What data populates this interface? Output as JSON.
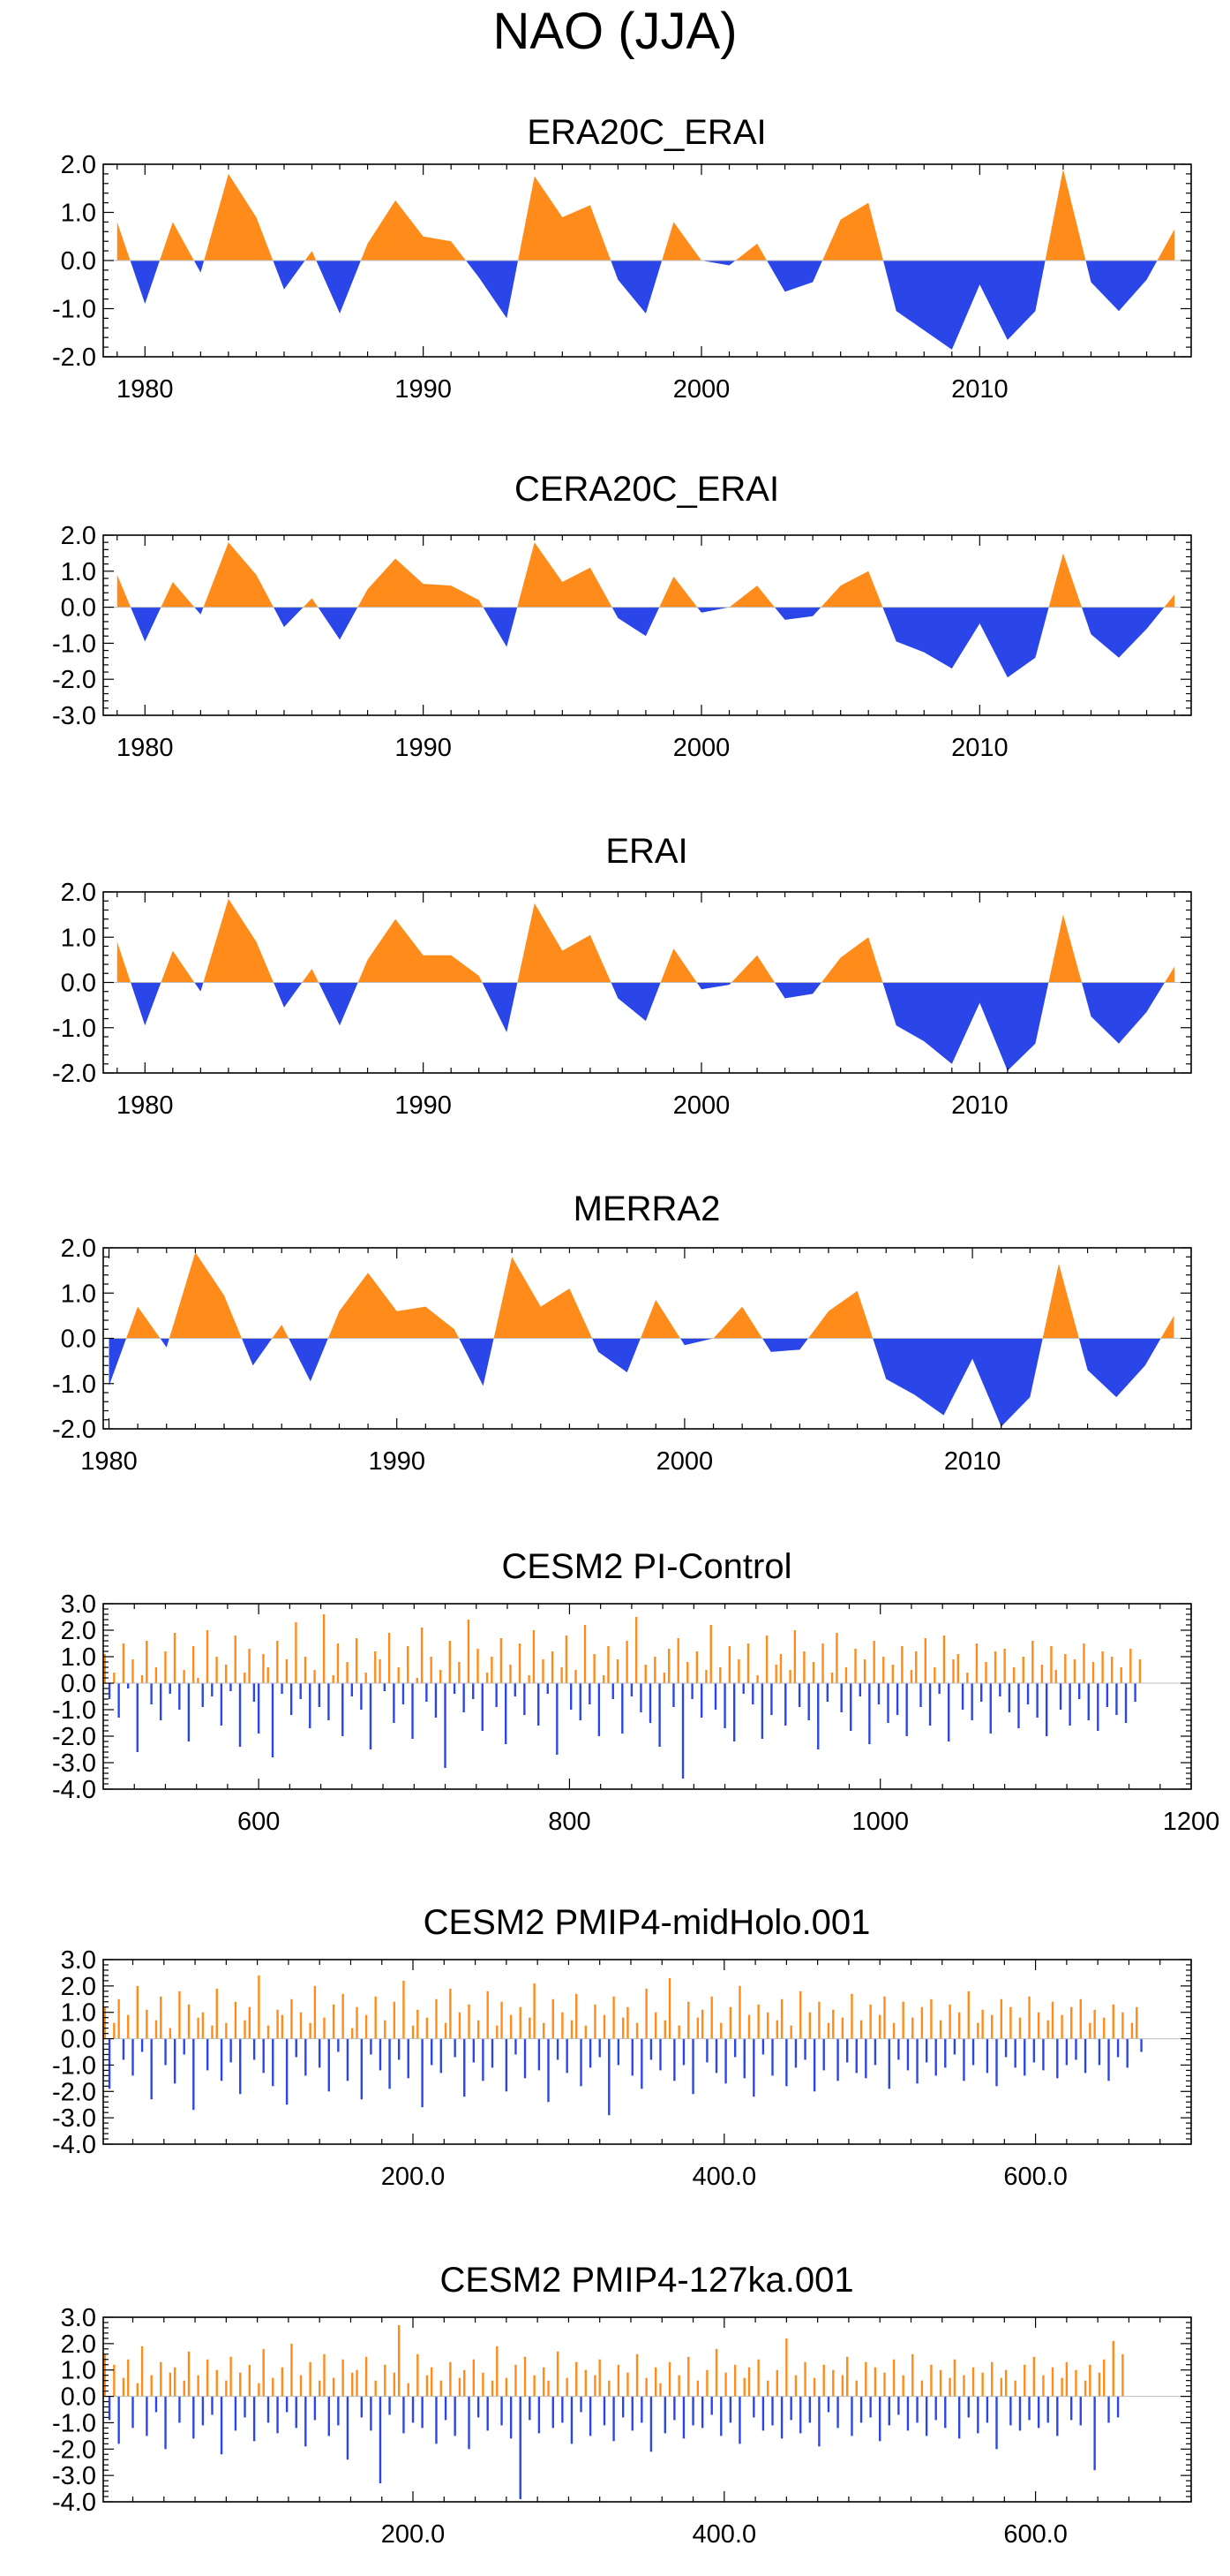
{
  "figure": {
    "title": "NAO (JJA)"
  },
  "colors": {
    "positive": "#ff8c1a",
    "negative": "#2a46e8",
    "axis": "#000000",
    "zero_line": "#bdbdbd"
  },
  "chart_data": [
    {
      "type": "area",
      "title": "ERA20C_ERAI",
      "xlim": [
        1978.5,
        2017.6
      ],
      "ylim": [
        -2.0,
        2.0
      ],
      "y_ticks": [
        2.0,
        1.0,
        0.0,
        -1.0,
        -2.0
      ],
      "y_tick_labels": [
        "2.0",
        "1.0",
        "0.0",
        "-1.0",
        "-2.0"
      ],
      "x_ticks": [
        1980,
        1990,
        2000,
        2010
      ],
      "x_tick_labels": [
        "1980",
        "1990",
        "2000",
        "2010"
      ],
      "x": [
        1979,
        1980,
        1981,
        1982,
        1983,
        1984,
        1985,
        1986,
        1987,
        1988,
        1989,
        1990,
        1991,
        1992,
        1993,
        1994,
        1995,
        1996,
        1997,
        1998,
        1999,
        2000,
        2001,
        2002,
        2003,
        2004,
        2005,
        2006,
        2007,
        2008,
        2009,
        2010,
        2011,
        2012,
        2013,
        2014,
        2015,
        2016,
        2017
      ],
      "values": [
        0.8,
        -0.9,
        0.8,
        -0.25,
        1.8,
        0.9,
        -0.6,
        0.2,
        -1.1,
        0.35,
        1.25,
        0.5,
        0.4,
        -0.35,
        -1.2,
        1.75,
        0.9,
        1.15,
        -0.4,
        -1.1,
        0.8,
        0.0,
        -0.1,
        0.35,
        -0.65,
        -0.45,
        0.85,
        1.2,
        -1.05,
        -1.45,
        -1.85,
        -0.5,
        -1.65,
        -1.05,
        1.9,
        -0.45,
        -1.05,
        -0.4,
        0.65
      ]
    },
    {
      "type": "area",
      "title": "CERA20C_ERAI",
      "xlim": [
        1978.5,
        2017.6
      ],
      "ylim": [
        -3.0,
        2.0
      ],
      "y_ticks": [
        2.0,
        1.0,
        0.0,
        -1.0,
        -2.0,
        -3.0
      ],
      "y_tick_labels": [
        "2.0",
        "1.0",
        "0.0",
        "-1.0",
        "-2.0",
        "-3.0"
      ],
      "x_ticks": [
        1980,
        1990,
        2000,
        2010
      ],
      "x_tick_labels": [
        "1980",
        "1990",
        "2000",
        "2010"
      ],
      "x": [
        1979,
        1980,
        1981,
        1982,
        1983,
        1984,
        1985,
        1986,
        1987,
        1988,
        1989,
        1990,
        1991,
        1992,
        1993,
        1994,
        1995,
        1996,
        1997,
        1998,
        1999,
        2000,
        2001,
        2002,
        2003,
        2004,
        2005,
        2006,
        2007,
        2008,
        2009,
        2010,
        2011,
        2012,
        2013,
        2014,
        2015,
        2016,
        2017
      ],
      "values": [
        0.9,
        -0.95,
        0.7,
        -0.2,
        1.8,
        0.9,
        -0.55,
        0.25,
        -0.9,
        0.5,
        1.35,
        0.65,
        0.6,
        0.2,
        -1.1,
        1.8,
        0.7,
        1.1,
        -0.3,
        -0.8,
        0.85,
        -0.15,
        0.0,
        0.6,
        -0.35,
        -0.25,
        0.6,
        1.0,
        -0.95,
        -1.25,
        -1.7,
        -0.45,
        -1.95,
        -1.4,
        1.5,
        -0.75,
        -1.4,
        -0.6,
        0.35
      ]
    },
    {
      "type": "area",
      "title": "ERAI",
      "xlim": [
        1978.5,
        2017.6
      ],
      "ylim": [
        -2.0,
        2.0
      ],
      "y_ticks": [
        2.0,
        1.0,
        0.0,
        -1.0,
        -2.0
      ],
      "y_tick_labels": [
        "2.0",
        "1.0",
        "0.0",
        "-1.0",
        "-2.0"
      ],
      "x_ticks": [
        1980,
        1990,
        2000,
        2010
      ],
      "x_tick_labels": [
        "1980",
        "1990",
        "2000",
        "2010"
      ],
      "x": [
        1979,
        1980,
        1981,
        1982,
        1983,
        1984,
        1985,
        1986,
        1987,
        1988,
        1989,
        1990,
        1991,
        1992,
        1993,
        1994,
        1995,
        1996,
        1997,
        1998,
        1999,
        2000,
        2001,
        2002,
        2003,
        2004,
        2005,
        2006,
        2007,
        2008,
        2009,
        2010,
        2011,
        2012,
        2013,
        2014,
        2015,
        2016,
        2017
      ],
      "values": [
        0.9,
        -0.95,
        0.7,
        -0.2,
        1.85,
        0.9,
        -0.55,
        0.3,
        -0.95,
        0.5,
        1.4,
        0.6,
        0.6,
        0.15,
        -1.1,
        1.75,
        0.7,
        1.05,
        -0.35,
        -0.85,
        0.75,
        -0.15,
        -0.05,
        0.6,
        -0.35,
        -0.25,
        0.55,
        1.0,
        -0.95,
        -1.3,
        -1.8,
        -0.45,
        -1.95,
        -1.35,
        1.5,
        -0.75,
        -1.35,
        -0.65,
        0.35
      ]
    },
    {
      "type": "area",
      "title": "MERRA2",
      "xlim": [
        1979.8,
        2017.6
      ],
      "ylim": [
        -2.0,
        2.0
      ],
      "y_ticks": [
        2.0,
        1.0,
        0.0,
        -1.0,
        -2.0
      ],
      "y_tick_labels": [
        "2.0",
        "1.0",
        "0.0",
        "-1.0",
        "-2.0"
      ],
      "x_ticks": [
        1980,
        1990,
        2000,
        2010
      ],
      "x_tick_labels": [
        "1980",
        "1990",
        "2000",
        "2010"
      ],
      "x": [
        1980,
        1981,
        1982,
        1983,
        1984,
        1985,
        1986,
        1987,
        1988,
        1989,
        1990,
        1991,
        1992,
        1993,
        1994,
        1995,
        1996,
        1997,
        1998,
        1999,
        2000,
        2001,
        2002,
        2003,
        2004,
        2005,
        2006,
        2007,
        2008,
        2009,
        2010,
        2011,
        2012,
        2013,
        2014,
        2015,
        2016,
        2017
      ],
      "values": [
        -1.05,
        0.7,
        -0.2,
        1.9,
        0.95,
        -0.6,
        0.3,
        -0.95,
        0.6,
        1.45,
        0.6,
        0.7,
        0.2,
        -1.05,
        1.8,
        0.7,
        1.1,
        -0.3,
        -0.75,
        0.85,
        -0.15,
        0.0,
        0.7,
        -0.3,
        -0.25,
        0.6,
        1.05,
        -0.9,
        -1.25,
        -1.7,
        -0.45,
        -1.95,
        -1.3,
        1.65,
        -0.7,
        -1.3,
        -0.6,
        0.5
      ]
    },
    {
      "type": "bar",
      "title": "CESM2 PI-Control",
      "xlim": [
        500,
        1200
      ],
      "ylim": [
        -4.0,
        3.0
      ],
      "y_ticks": [
        3.0,
        2.0,
        1.0,
        0.0,
        -1.0,
        -2.0,
        -3.0,
        -4.0
      ],
      "y_tick_labels": [
        "3.0",
        "2.0",
        "1.0",
        "0.0",
        "-1.0",
        "-2.0",
        "-3.0",
        "-4.0"
      ],
      "x_ticks": [
        600,
        800,
        1000,
        1200
      ],
      "x_tick_labels": [
        "600",
        "800",
        "1000",
        "1200"
      ],
      "x_start": 501,
      "x_step": 3,
      "values": [
        1.1,
        -0.6,
        0.4,
        -1.3,
        1.5,
        -0.2,
        0.9,
        -2.6,
        0.3,
        1.6,
        -0.8,
        0.6,
        -1.4,
        1.2,
        -0.4,
        1.9,
        -1.0,
        0.5,
        -2.2,
        1.4,
        0.2,
        -0.9,
        2.0,
        -0.5,
        1.0,
        -1.6,
        0.7,
        -0.3,
        1.8,
        -2.4,
        0.4,
        1.3,
        -0.7,
        -1.9,
        1.1,
        0.6,
        -2.8,
        1.6,
        -0.4,
        0.9,
        -1.2,
        2.3,
        -0.6,
        1.0,
        -1.7,
        0.5,
        -0.9,
        2.6,
        -1.4,
        0.3,
        1.5,
        -2.0,
        0.8,
        -0.5,
        1.7,
        -1.0,
        0.4,
        -2.5,
        1.2,
        0.9,
        -0.3,
        1.9,
        -1.5,
        0.6,
        -0.8,
        1.4,
        -2.1,
        0.2,
        2.1,
        -0.7,
        1.0,
        -1.3,
        0.5,
        -3.2,
        1.6,
        -0.4,
        0.8,
        -1.1,
        2.4,
        -0.6,
        1.3,
        -1.8,
        0.4,
        1.0,
        -0.9,
        1.7,
        -2.3,
        0.7,
        -0.5,
        1.5,
        -1.2,
        0.3,
        2.0,
        -1.6,
        0.9,
        -0.4,
        1.2,
        -2.7,
        0.6,
        1.8,
        -1.0,
        0.5,
        -1.4,
        2.2,
        -0.8,
        1.1,
        -2.0,
        0.3,
        1.4,
        -0.6,
        0.9,
        -1.9,
        1.6,
        -0.5,
        2.5,
        -1.1,
        0.7,
        -1.5,
        1.0,
        -2.4,
        0.4,
        1.3,
        -0.9,
        1.7,
        -3.6,
        0.8,
        -0.6,
        1.2,
        -1.3,
        0.5,
        2.2,
        -1.0,
        0.6,
        -1.7,
        1.4,
        -2.2,
        0.9,
        -0.4,
        1.5,
        -0.8,
        0.3,
        -2.1,
        1.8,
        -1.2,
        0.7,
        1.1,
        -1.6,
        0.5,
        2.0,
        -0.9,
        1.2,
        -1.4,
        0.8,
        -2.5,
        1.5,
        -0.7,
        0.4,
        1.9,
        -1.1,
        0.6,
        -1.8,
        1.3,
        -0.5,
        0.9,
        -2.3,
        1.6,
        -0.8,
        1.0,
        -1.5,
        0.7,
        -1.2,
        1.4,
        -2.0,
        0.5,
        1.2,
        -0.9,
        1.7,
        -1.6,
        0.6,
        -0.4,
        1.8,
        -2.2,
        0.9,
        1.1,
        -1.0,
        0.4,
        -1.4,
        1.5,
        -0.7,
        0.8,
        -1.9,
        1.2,
        -0.5,
        1.3,
        -1.1,
        0.6,
        -1.7,
        1.0,
        -0.8,
        1.6,
        -1.3,
        0.7,
        -2.0,
        1.4,
        0.5,
        -1.0,
        1.1,
        -1.6,
        0.9,
        -0.6,
        1.5,
        -1.4,
        0.8,
        -1.8,
        1.2,
        -0.9,
        1.0,
        -1.2,
        0.6,
        -1.5,
        1.3,
        -0.7,
        0.9
      ]
    },
    {
      "type": "bar",
      "title": "CESM2 PMIP4-midHolo.001",
      "xlim": [
        1,
        700
      ],
      "ylim": [
        -4.0,
        3.0
      ],
      "y_ticks": [
        3.0,
        2.0,
        1.0,
        0.0,
        -1.0,
        -2.0,
        -3.0,
        -4.0
      ],
      "y_tick_labels": [
        "3.0",
        "2.0",
        "1.0",
        "0.0",
        "-1.0",
        "-2.0",
        "-3.0",
        "-4.0"
      ],
      "x_ticks": [
        200,
        400,
        600
      ],
      "x_tick_labels": [
        "200.0",
        "400.0",
        "600.0"
      ],
      "x_start": 2,
      "x_step": 3,
      "values": [
        1.2,
        -1.9,
        0.6,
        1.5,
        -0.8,
        0.9,
        -1.4,
        2.0,
        -0.5,
        1.1,
        -2.3,
        0.7,
        1.6,
        -1.0,
        0.4,
        -1.7,
        1.8,
        -0.6,
        1.3,
        -2.7,
        0.8,
        1.0,
        -1.2,
        0.5,
        1.9,
        -1.6,
        0.6,
        -0.9,
        1.4,
        -2.1,
        0.7,
        1.2,
        -0.8,
        2.4,
        -1.3,
        0.5,
        -1.8,
        1.1,
        0.9,
        -2.5,
        1.5,
        -0.7,
        1.0,
        -1.4,
        0.6,
        2.0,
        -1.1,
        0.8,
        -2.0,
        1.3,
        -0.5,
        1.7,
        -1.6,
        0.4,
        1.2,
        -2.3,
        0.9,
        -0.6,
        1.6,
        -1.2,
        0.7,
        -1.9,
        1.4,
        -0.8,
        2.2,
        -1.5,
        0.5,
        1.1,
        -2.6,
        0.8,
        -1.0,
        1.5,
        -1.3,
        0.6,
        1.9,
        -0.7,
        1.0,
        -2.2,
        1.3,
        -0.9,
        0.7,
        -1.6,
        1.8,
        -1.1,
        0.5,
        1.4,
        -2.0,
        0.9,
        -0.6,
        1.2,
        -1.5,
        0.8,
        2.1,
        -1.2,
        0.6,
        -2.4,
        1.5,
        -0.8,
        1.0,
        -1.3,
        0.7,
        1.7,
        -1.8,
        0.5,
        -1.1,
        1.3,
        -0.7,
        0.9,
        -2.9,
        1.6,
        -1.0,
        0.8,
        1.2,
        -1.4,
        0.6,
        -1.9,
        1.9,
        -0.8,
        1.0,
        -1.2,
        0.7,
        2.3,
        -1.6,
        0.5,
        -1.0,
        1.4,
        -2.1,
        0.8,
        1.1,
        -0.9,
        1.6,
        -1.3,
        0.6,
        -1.7,
        1.2,
        -0.7,
        2.0,
        -1.5,
        0.9,
        -2.2,
        1.3,
        -0.6,
        1.0,
        -1.4,
        0.7,
        1.5,
        -1.8,
        0.5,
        -1.1,
        1.8,
        -0.8,
        1.0,
        -2.0,
        1.4,
        -1.2,
        0.6,
        1.1,
        -1.6,
        0.8,
        -0.9,
        1.7,
        -1.3,
        0.7,
        -1.5,
        1.3,
        -1.0,
        0.9,
        1.6,
        -1.9,
        0.6,
        -0.8,
        1.4,
        -1.2,
        0.8,
        -1.7,
        1.2,
        -0.9,
        1.5,
        -1.4,
        0.7,
        -1.1,
        1.3,
        -0.6,
        1.0,
        -1.6,
        1.8,
        -1.0,
        0.6,
        1.1,
        -1.3,
        0.9,
        -1.8,
        1.5,
        -0.7,
        1.2,
        -1.1,
        0.8,
        -1.4,
        1.6,
        -0.9,
        1.0,
        -1.2,
        0.7,
        1.4,
        -1.5,
        0.9,
        -1.0,
        1.2,
        -0.8,
        1.5,
        -1.3,
        0.6,
        1.1,
        -1.0,
        0.8,
        -1.6,
        1.3,
        -0.7,
        1.0,
        -1.1,
        0.6,
        1.2,
        -0.5
      ]
    },
    {
      "type": "bar",
      "title": "CESM2 PMIP4-127ka.001",
      "xlim": [
        1,
        700
      ],
      "ylim": [
        -4.0,
        3.0
      ],
      "y_ticks": [
        3.0,
        2.0,
        1.0,
        0.0,
        -1.0,
        -2.0,
        -3.0,
        -4.0
      ],
      "y_tick_labels": [
        "3.0",
        "2.0",
        "1.0",
        "0.0",
        "-1.0",
        "-2.0",
        "-3.0",
        "-4.0"
      ],
      "x_ticks": [
        200,
        400,
        600
      ],
      "x_tick_labels": [
        "200.0",
        "400.0",
        "600.0"
      ],
      "x_start": 2,
      "x_step": 3,
      "values": [
        1.6,
        -0.9,
        1.2,
        -1.8,
        0.7,
        1.4,
        -1.2,
        0.5,
        1.9,
        -1.5,
        0.8,
        -0.6,
        1.3,
        -2.0,
        0.9,
        1.1,
        -1.0,
        0.6,
        1.7,
        -1.6,
        0.8,
        -1.1,
        1.4,
        -0.7,
        1.0,
        -2.2,
        0.6,
        1.5,
        -1.3,
        0.9,
        -0.8,
        1.2,
        -1.7,
        0.5,
        1.8,
        -1.0,
        0.7,
        -1.4,
        1.1,
        -0.6,
        2.0,
        -1.2,
        0.8,
        -1.9,
        1.3,
        -0.9,
        0.6,
        1.6,
        -1.5,
        0.7,
        -1.1,
        1.4,
        -2.4,
        0.9,
        1.0,
        -0.8,
        1.5,
        -1.3,
        0.6,
        -3.3,
        1.2,
        -0.7,
        0.9,
        2.7,
        -1.4,
        0.5,
        -1.0,
        1.6,
        -1.2,
        0.8,
        1.1,
        -1.8,
        0.6,
        -0.9,
        1.3,
        -1.5,
        0.7,
        1.0,
        -2.0,
        1.4,
        -0.8,
        0.9,
        -1.3,
        0.6,
        1.9,
        -1.1,
        0.7,
        -1.6,
        1.2,
        -3.9,
        1.5,
        -0.9,
        0.8,
        -1.4,
        1.1,
        0.6,
        -1.2,
        1.7,
        -1.0,
        0.7,
        -1.8,
        1.3,
        -0.6,
        1.0,
        -1.5,
        0.8,
        1.4,
        -1.1,
        0.6,
        -1.7,
        1.2,
        -0.8,
        0.9,
        -1.3,
        1.6,
        -1.0,
        0.7,
        -2.1,
        1.1,
        0.5,
        -1.4,
        1.3,
        -0.9,
        0.8,
        -1.6,
        1.5,
        -1.1,
        0.6,
        -1.2,
        1.0,
        -0.7,
        1.8,
        -1.5,
        0.9,
        -1.0,
        1.2,
        -1.8,
        0.7,
        1.1,
        -0.8,
        1.4,
        -1.3,
        0.6,
        -1.1,
        1.0,
        -1.6,
        2.2,
        -0.9,
        0.8,
        -1.4,
        1.3,
        -1.0,
        0.7,
        -1.9,
        1.2,
        -0.6,
        1.0,
        -1.2,
        0.8,
        1.5,
        -1.5,
        0.6,
        -1.0,
        1.3,
        -0.8,
        1.1,
        -1.7,
        0.9,
        -1.1,
        1.4,
        -0.7,
        0.8,
        -1.3,
        1.6,
        -1.0,
        0.6,
        -1.5,
        1.2,
        -0.9,
        1.0,
        -1.2,
        0.7,
        1.4,
        -1.6,
        0.8,
        -0.8,
        1.1,
        -1.4,
        0.9,
        -1.0,
        1.3,
        -2.0,
        0.7,
        1.0,
        -1.1,
        0.6,
        -1.3,
        1.2,
        -0.9,
        1.5,
        -1.2,
        0.8,
        -1.0,
        1.1,
        -1.5,
        0.7,
        1.3,
        -0.9,
        1.0,
        -1.1,
        0.6,
        1.2,
        -2.8,
        0.9,
        1.4,
        -1.0,
        2.1,
        -0.8,
        1.6
      ]
    }
  ]
}
